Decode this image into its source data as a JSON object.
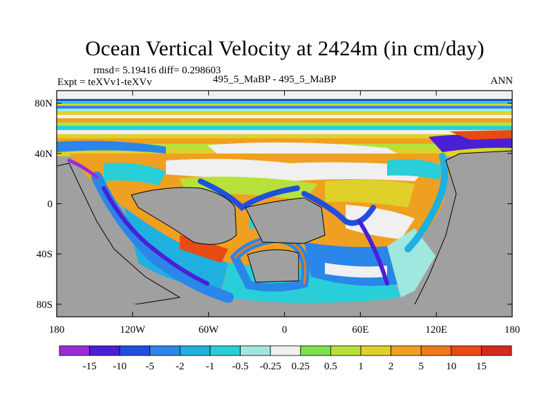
{
  "header": {
    "title": "Ocean Vertical Velocity at 2424m (in cm/day)",
    "rmsd_text": "rmsd= 5.19416 diff= 0.298603",
    "expt_text": "Expt = teXVv1-teXVv",
    "case_text": "495_5_MaBP - 495_5_MaBP",
    "season": "ANN"
  },
  "chart_data": {
    "type": "heatmap",
    "title": "Ocean Vertical Velocity at 2424m (in cm/day)",
    "units": "cm/day",
    "xlabel": "",
    "ylabel": "",
    "xlim": [
      -180,
      180
    ],
    "ylim": [
      -90,
      90
    ],
    "x_ticks": [
      {
        "value": -180,
        "label": "180"
      },
      {
        "value": -120,
        "label": "120W"
      },
      {
        "value": -60,
        "label": "60W"
      },
      {
        "value": 0,
        "label": "0"
      },
      {
        "value": 60,
        "label": "60E"
      },
      {
        "value": 120,
        "label": "120E"
      },
      {
        "value": 180,
        "label": "180"
      }
    ],
    "y_ticks": [
      {
        "value": 80,
        "label": "80N"
      },
      {
        "value": 40,
        "label": "40N"
      },
      {
        "value": 0,
        "label": "0"
      },
      {
        "value": -40,
        "label": "40S"
      },
      {
        "value": -80,
        "label": "80S"
      }
    ],
    "colorbar": {
      "levels": [
        "-15",
        "-10",
        "-5",
        "-2",
        "-1",
        "-0.5",
        "-0.25",
        "0.25",
        "0.5",
        "1",
        "2",
        "5",
        "10",
        "15"
      ],
      "colors": [
        "#9b2bd9",
        "#4a1fd6",
        "#1f4fe0",
        "#2a86e8",
        "#1fb0e0",
        "#28cfd8",
        "#9fe8e0",
        "#f0f0f0",
        "#7ee04a",
        "#b8e03a",
        "#e0d02a",
        "#f0a020",
        "#f07818",
        "#e84a12",
        "#d8281a"
      ]
    },
    "land_color": "#a0a0a0",
    "missing_color": "#ffffff"
  }
}
